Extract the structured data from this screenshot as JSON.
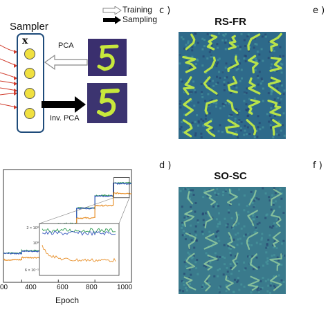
{
  "legend": {
    "training": "Training",
    "sampling": "Sampling"
  },
  "sampler": {
    "title": "Sampler",
    "var": "x",
    "pca": "PCA",
    "inv_pca": "Inv. PCA"
  },
  "panels": {
    "c": {
      "letter": "c )",
      "title": "RS-FR"
    },
    "d": {
      "letter": "d )",
      "title": "SO-SC"
    },
    "e": {
      "letter": "e )"
    },
    "f": {
      "letter": "f )"
    }
  },
  "chart": {
    "xlabel": "Epoch",
    "xticks": [
      "00",
      "400",
      "600",
      "800",
      "1000"
    ],
    "inset_yticks": [
      "2 × 10⁰",
      "10⁰",
      "6 × 10⁻¹"
    ]
  },
  "colors": {
    "green": "#2e9a52",
    "blue": "#3a5bbf",
    "orange": "#e8912c",
    "digit_bg": "#3a2f6e",
    "digit_fg": "#c8e83c",
    "sampler_border": "#1e4b7a",
    "node_fill": "#f0e040"
  },
  "chart_data": {
    "type": "line",
    "xlabel": "Epoch",
    "x_range": [
      300,
      1000
    ],
    "series": [
      {
        "steps": [
          [
            300,
            0.26
          ],
          [
            400,
            0.28
          ],
          [
            500,
            0.4
          ],
          [
            600,
            0.52
          ],
          [
            700,
            0.66
          ],
          [
            800,
            0.77
          ],
          [
            900,
            0.88
          ],
          [
            1000,
            0.88
          ]
        ]
      },
      {
        "steps": [
          [
            300,
            0.26
          ],
          [
            400,
            0.28
          ],
          [
            500,
            0.4
          ],
          [
            600,
            0.52
          ],
          [
            700,
            0.66
          ],
          [
            800,
            0.77
          ],
          [
            900,
            0.88
          ],
          [
            1000,
            0.88
          ]
        ]
      },
      {
        "steps": [
          [
            300,
            0.2
          ],
          [
            400,
            0.22
          ],
          [
            500,
            0.33
          ],
          [
            600,
            0.44
          ],
          [
            700,
            0.57
          ],
          [
            800,
            0.68
          ],
          [
            900,
            0.79
          ],
          [
            1000,
            0.79
          ]
        ]
      }
    ]
  }
}
